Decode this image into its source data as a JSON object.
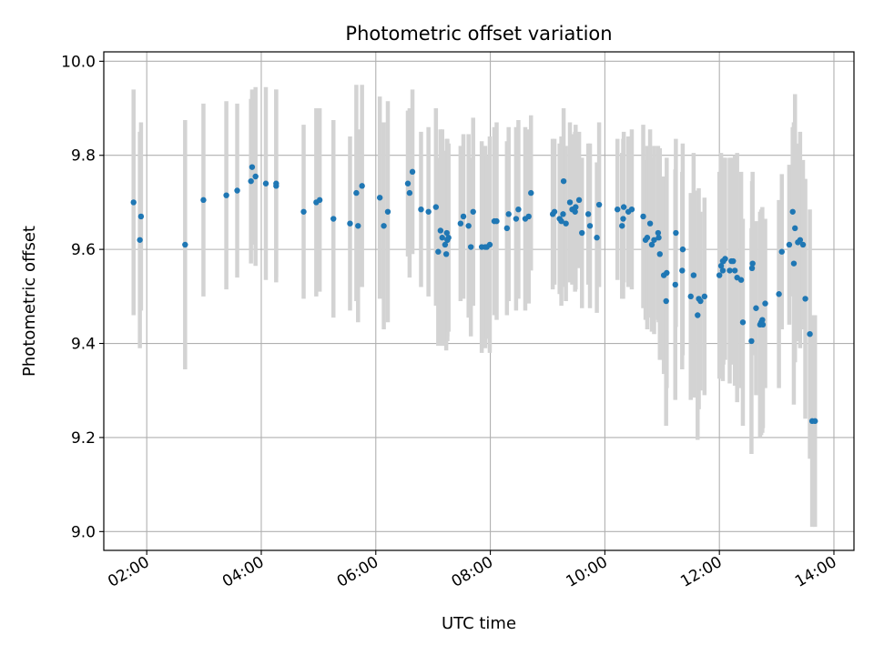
{
  "chart_data": {
    "type": "scatter",
    "title": "Photometric offset variation",
    "xlabel": "UTC time",
    "ylabel": "Photometric offset",
    "x_unit": "hours (UTC)",
    "xlim": [
      1.25,
      14.35
    ],
    "ylim": [
      8.96,
      10.02
    ],
    "x_ticks": [
      2,
      4,
      6,
      8,
      10,
      12,
      14
    ],
    "x_tick_labels": [
      "02:00",
      "04:00",
      "06:00",
      "08:00",
      "10:00",
      "12:00",
      "14:00"
    ],
    "y_ticks": [
      9.0,
      9.2,
      9.4,
      9.6,
      9.8,
      10.0
    ],
    "y_tick_labels": [
      "9.0",
      "9.2",
      "9.4",
      "9.6",
      "9.8",
      "10.0"
    ],
    "grid": true,
    "colors": {
      "point": "#1f77b4",
      "errorbar": "#d3d3d3",
      "grid": "#b0b0b0"
    },
    "series": [
      {
        "x": [
          1.77,
          1.88,
          1.9,
          2.67,
          2.99,
          3.39,
          3.58,
          3.82,
          3.84,
          3.9,
          4.08,
          4.26,
          4.26,
          4.74,
          4.96,
          5.02,
          5.26,
          5.55,
          5.66,
          5.69,
          5.76,
          6.07,
          6.14,
          6.21,
          6.56,
          6.59,
          6.64,
          6.79,
          6.92,
          7.05,
          7.09,
          7.13,
          7.16,
          7.21,
          7.23,
          7.24,
          7.25,
          7.25,
          7.27,
          7.48,
          7.53,
          7.62,
          7.66,
          7.7,
          7.85,
          7.91,
          7.94,
          7.99,
          8.07,
          8.11,
          8.29,
          8.32,
          8.45,
          8.49,
          8.61,
          8.67,
          8.71,
          9.09,
          9.12,
          9.21,
          9.24,
          9.27,
          9.28,
          9.32,
          9.39,
          9.43,
          9.48,
          9.49,
          9.55,
          9.6,
          9.71,
          9.74,
          9.86,
          9.9,
          10.22,
          10.3,
          10.32,
          10.33,
          10.41,
          10.47,
          10.67,
          10.71,
          10.74,
          10.79,
          10.82,
          10.86,
          10.93,
          10.94,
          10.96,
          11.03,
          11.07,
          11.08,
          11.23,
          11.24,
          11.35,
          11.36,
          11.5,
          11.55,
          11.62,
          11.64,
          11.67,
          11.74,
          12.0,
          12.03,
          12.06,
          12.06,
          12.07,
          12.1,
          12.18,
          12.21,
          12.24,
          12.27,
          12.31,
          12.38,
          12.41,
          12.56,
          12.57,
          12.58,
          12.64,
          12.71,
          12.73,
          12.75,
          12.76,
          12.8,
          13.04,
          13.09,
          13.22,
          13.28,
          13.3,
          13.32,
          13.37,
          13.41,
          13.46,
          13.5,
          13.58,
          13.62,
          13.67
        ],
        "y": [
          9.7,
          9.62,
          9.67,
          9.61,
          9.705,
          9.715,
          9.725,
          9.745,
          9.775,
          9.755,
          9.74,
          9.735,
          9.74,
          9.68,
          9.7,
          9.705,
          9.665,
          9.655,
          9.72,
          9.65,
          9.735,
          9.71,
          9.65,
          9.68,
          9.74,
          9.72,
          9.765,
          9.685,
          9.68,
          9.69,
          9.595,
          9.64,
          9.625,
          9.61,
          9.59,
          9.635,
          9.62,
          9.62,
          9.625,
          9.655,
          9.67,
          9.65,
          9.605,
          9.68,
          9.605,
          9.605,
          9.605,
          9.61,
          9.66,
          9.66,
          9.645,
          9.675,
          9.665,
          9.685,
          9.665,
          9.67,
          9.72,
          9.675,
          9.68,
          9.665,
          9.66,
          9.675,
          9.745,
          9.655,
          9.7,
          9.685,
          9.68,
          9.69,
          9.705,
          9.635,
          9.675,
          9.65,
          9.625,
          9.695,
          9.685,
          9.65,
          9.665,
          9.69,
          9.68,
          9.685,
          9.67,
          9.62,
          9.625,
          9.655,
          9.61,
          9.62,
          9.635,
          9.625,
          9.59,
          9.545,
          9.49,
          9.55,
          9.525,
          9.635,
          9.555,
          9.6,
          9.5,
          9.545,
          9.46,
          9.495,
          9.49,
          9.5,
          9.545,
          9.565,
          9.555,
          9.575,
          9.575,
          9.58,
          9.555,
          9.575,
          9.575,
          9.555,
          9.54,
          9.535,
          9.445,
          9.405,
          9.56,
          9.57,
          9.475,
          9.44,
          9.445,
          9.45,
          9.44,
          9.485,
          9.505,
          9.595,
          9.61,
          9.68,
          9.57,
          9.645,
          9.615,
          9.62,
          9.61,
          9.495,
          9.42,
          9.235,
          9.235
        ],
        "err": [
          0.24,
          0.23,
          0.2,
          0.265,
          0.205,
          0.2,
          0.185,
          0.175,
          0.165,
          0.19,
          0.205,
          0.205,
          0.2,
          0.185,
          0.2,
          0.195,
          0.21,
          0.185,
          0.23,
          0.205,
          0.215,
          0.215,
          0.22,
          0.235,
          0.155,
          0.18,
          0.175,
          0.165,
          0.18,
          0.21,
          0.2,
          0.215,
          0.23,
          0.2,
          0.205,
          0.2,
          0.215,
          0.205,
          0.2,
          0.165,
          0.175,
          0.195,
          0.19,
          0.2,
          0.225,
          0.215,
          0.195,
          0.23,
          0.2,
          0.21,
          0.185,
          0.185,
          0.195,
          0.19,
          0.195,
          0.185,
          0.165,
          0.16,
          0.155,
          0.16,
          0.18,
          0.155,
          0.155,
          0.165,
          0.17,
          0.16,
          0.17,
          0.175,
          0.145,
          0.16,
          0.15,
          0.175,
          0.16,
          0.175,
          0.15,
          0.155,
          0.17,
          0.16,
          0.16,
          0.17,
          0.195,
          0.17,
          0.195,
          0.2,
          0.185,
          0.2,
          0.185,
          0.18,
          0.225,
          0.21,
          0.265,
          0.245,
          0.245,
          0.2,
          0.21,
          0.225,
          0.22,
          0.26,
          0.265,
          0.235,
          0.19,
          0.21,
          0.22,
          0.24,
          0.235,
          0.2,
          0.22,
          0.215,
          0.24,
          0.22,
          0.21,
          0.245,
          0.265,
          0.23,
          0.22,
          0.24,
          0.185,
          0.195,
          0.185,
          0.24,
          0.24,
          0.24,
          0.22,
          0.18,
          0.2,
          0.165,
          0.17,
          0.18,
          0.3,
          0.285,
          0.21,
          0.23,
          0.18,
          0.255,
          0.265,
          0.225,
          0.225
        ]
      }
    ]
  }
}
